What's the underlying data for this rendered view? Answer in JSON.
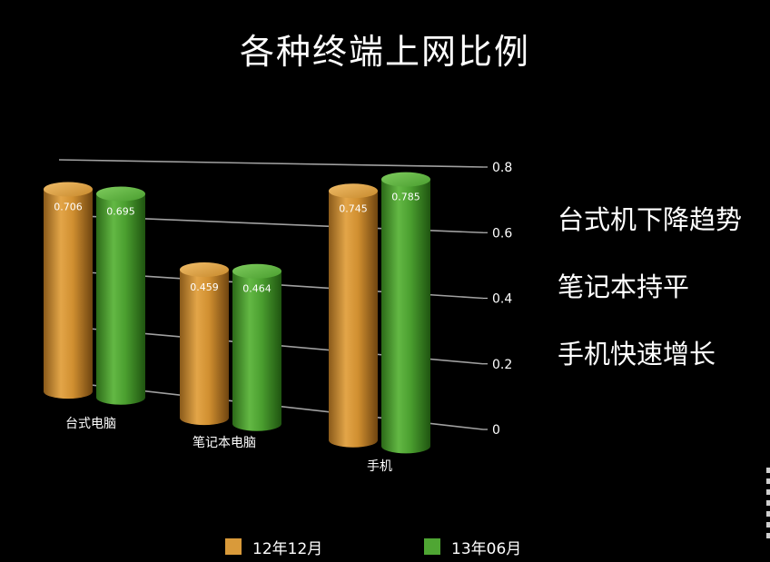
{
  "slide": {
    "title": "各种终端上网比例",
    "bullets": [
      "台式机下降趋势",
      "笔记本持平",
      "手机快速增长"
    ]
  },
  "colors": {
    "background": "#000000",
    "series_12": "#d99a3a",
    "series_13": "#4fa633",
    "grid": "#bdbdbd",
    "text": "#ffffff"
  },
  "chart_data": {
    "type": "bar",
    "style": "3d-cylinder",
    "categories": [
      "台式电脑",
      "笔记本电脑",
      "手机"
    ],
    "series": [
      {
        "name": "12年12月",
        "values": [
          0.706,
          0.459,
          0.745
        ],
        "data_labels": [
          "0.706",
          "0.459",
          "0.745"
        ]
      },
      {
        "name": "13年06月",
        "values": [
          0.695,
          0.464,
          0.785
        ],
        "data_labels": [
          "0.695",
          "0.464",
          "0.785"
        ]
      }
    ],
    "ylim": [
      0,
      0.8
    ],
    "yticks": [
      0,
      0.2,
      0.4,
      0.6,
      0.8
    ],
    "ytick_labels": [
      "0",
      "0.2",
      "0.4",
      "0.6",
      "0.8"
    ],
    "axis_position": "right",
    "grid": true,
    "legend": "bottom-center",
    "title": "",
    "xlabel": "",
    "ylabel": ""
  }
}
